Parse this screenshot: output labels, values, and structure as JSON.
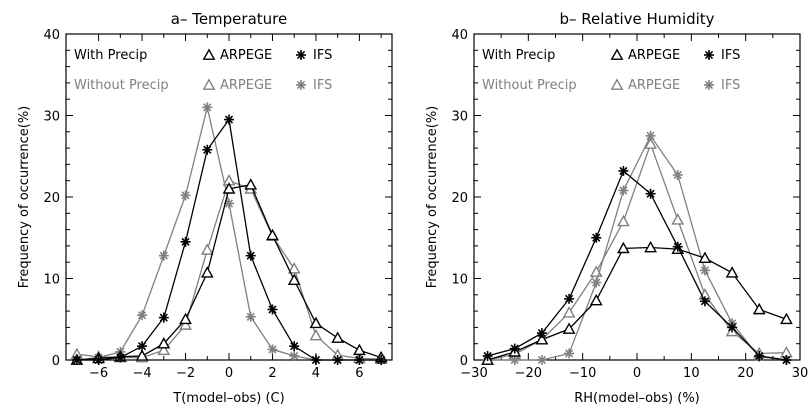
{
  "colors": {
    "with_precip": "#000000",
    "without_precip": "#808080"
  },
  "chart_data": [
    {
      "type": "line",
      "title": "a– Temperature",
      "xlabel": "T(model–obs) (C)",
      "ylabel": "Frequency of occurrence(%)",
      "xlim": [
        -7.5,
        7.5
      ],
      "ylim": [
        0,
        40
      ],
      "xticks": [
        -6,
        -4,
        -2,
        0,
        2,
        4,
        6
      ],
      "xtick_labels": [
        "−6",
        "−4",
        "−2",
        "0",
        "2",
        "4",
        "6"
      ],
      "yticks": [
        0,
        10,
        20,
        30,
        40
      ],
      "ytick_labels": [
        "0",
        "10",
        "20",
        "30",
        "40"
      ],
      "grid": false,
      "legend": {
        "placement": "top",
        "row_with": "With Precip",
        "row_without": "Without Precip",
        "arpege": "ARPEGE",
        "ifs": "IFS"
      },
      "series": [
        {
          "model": "ARPEGE",
          "group": "without",
          "marker": "triangle",
          "x": [
            -7,
            -6,
            -5,
            -4,
            -3,
            -2,
            -1,
            0,
            1,
            2,
            3,
            4,
            5,
            6,
            7
          ],
          "y": [
            0.7,
            0.4,
            0.3,
            0.3,
            1.2,
            4.3,
            13.5,
            22.0,
            21.0,
            15.2,
            11.2,
            3.0,
            0.6,
            0.2,
            0.1
          ]
        },
        {
          "model": "IFS",
          "group": "without",
          "marker": "asterisk",
          "x": [
            -7,
            -6,
            -5,
            -4,
            -3,
            -2,
            -1,
            0,
            1,
            2,
            3,
            4,
            5,
            6,
            7
          ],
          "y": [
            0.0,
            0.3,
            1.0,
            5.5,
            12.8,
            20.2,
            31.0,
            19.2,
            5.3,
            1.3,
            0.5,
            0.0,
            0.0,
            0.0,
            0.0
          ]
        },
        {
          "model": "ARPEGE",
          "group": "with",
          "marker": "triangle",
          "x": [
            -7,
            -6,
            -5,
            -4,
            -3,
            -2,
            -1,
            0,
            1,
            2,
            3,
            4,
            5,
            6,
            7
          ],
          "y": [
            0.0,
            0.2,
            0.4,
            0.5,
            2.0,
            5.0,
            10.7,
            21.0,
            21.5,
            15.3,
            9.8,
            4.5,
            2.7,
            1.2,
            0.3
          ]
        },
        {
          "model": "IFS",
          "group": "with",
          "marker": "asterisk",
          "x": [
            -7,
            -6,
            -5,
            -4,
            -3,
            -2,
            -1,
            0,
            1,
            2,
            3,
            4,
            5,
            6,
            7
          ],
          "y": [
            0.0,
            0.0,
            0.3,
            1.7,
            5.2,
            14.5,
            25.8,
            29.5,
            12.8,
            6.2,
            1.7,
            0.0,
            0.0,
            0.0,
            0.0
          ]
        }
      ]
    },
    {
      "type": "line",
      "title": "b– Relative Humidity",
      "xlabel": "RH(model–obs) (%)",
      "ylabel": "Frequency of occurrence(%)",
      "xlim": [
        -30,
        30
      ],
      "ylim": [
        0,
        40
      ],
      "xticks": [
        -30,
        -20,
        -10,
        0,
        10,
        20,
        30
      ],
      "xtick_labels": [
        "−30",
        "−20",
        "−10",
        "0",
        "10",
        "20",
        "30"
      ],
      "yticks": [
        0,
        10,
        20,
        30,
        40
      ],
      "ytick_labels": [
        "0",
        "10",
        "20",
        "30",
        "40"
      ],
      "grid": false,
      "legend": {
        "placement": "top",
        "row_with": "With Precip",
        "row_without": "Without Precip",
        "arpege": "ARPEGE",
        "ifs": "IFS"
      },
      "series": [
        {
          "model": "ARPEGE",
          "group": "without",
          "marker": "triangle",
          "x": [
            -27.5,
            -22.5,
            -17.5,
            -12.5,
            -7.5,
            -2.5,
            2.5,
            7.5,
            12.5,
            17.5,
            22.5,
            27.5
          ],
          "y": [
            0.0,
            0.7,
            2.5,
            5.8,
            10.8,
            17.0,
            26.5,
            17.2,
            8.0,
            3.5,
            0.8,
            0.9
          ]
        },
        {
          "model": "IFS",
          "group": "without",
          "marker": "asterisk",
          "x": [
            -27.5,
            -22.5,
            -17.5,
            -12.5,
            -7.5,
            -2.5,
            2.5,
            7.5,
            12.5,
            17.5,
            22.5,
            27.5
          ],
          "y": [
            0.0,
            0.0,
            0.0,
            0.8,
            9.5,
            20.8,
            27.5,
            22.7,
            11.0,
            4.5,
            0.4,
            0.0
          ]
        },
        {
          "model": "ARPEGE",
          "group": "with",
          "marker": "triangle",
          "x": [
            -27.5,
            -22.5,
            -17.5,
            -12.5,
            -7.5,
            -2.5,
            2.5,
            7.5,
            12.5,
            17.5,
            22.5,
            27.5
          ],
          "y": [
            0.0,
            1.0,
            2.5,
            3.8,
            7.3,
            13.7,
            13.8,
            13.6,
            12.5,
            10.7,
            6.2,
            5.0
          ]
        },
        {
          "model": "IFS",
          "group": "with",
          "marker": "asterisk",
          "x": [
            -27.5,
            -22.5,
            -17.5,
            -12.5,
            -7.5,
            -2.5,
            2.5,
            7.5,
            12.5,
            17.5,
            22.5,
            27.5
          ],
          "y": [
            0.5,
            1.4,
            3.3,
            7.5,
            15.0,
            23.2,
            20.4,
            13.9,
            7.2,
            4.0,
            0.5,
            0.0
          ]
        }
      ]
    }
  ]
}
